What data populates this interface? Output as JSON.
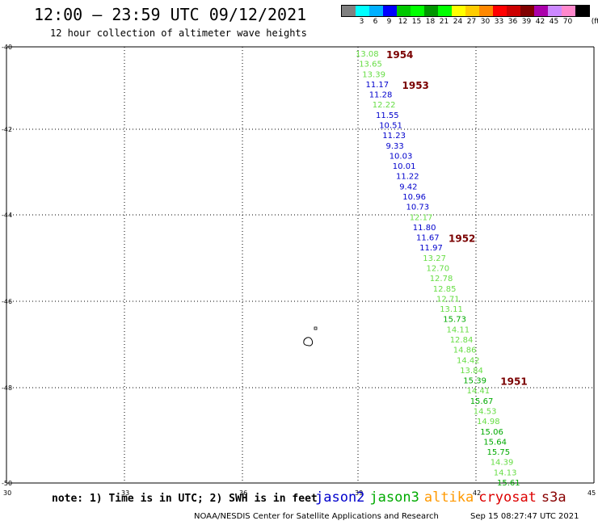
{
  "header": {
    "title": "12:00 – 23:59 UTC 09/12/2021",
    "subtitle": "12 hour collection of altimeter wave heights"
  },
  "legend": {
    "units": "(ft)",
    "items": [
      {
        "label": "",
        "color": "#808080"
      },
      {
        "label": "3",
        "color": "#00ffff"
      },
      {
        "label": "6",
        "color": "#00b0ff"
      },
      {
        "label": "9",
        "color": "#0000ff"
      },
      {
        "label": "12",
        "color": "#00c800"
      },
      {
        "label": "15",
        "color": "#00ff00"
      },
      {
        "label": "18",
        "color": "#009600"
      },
      {
        "label": "21",
        "color": "#00ff00"
      },
      {
        "label": "24",
        "color": "#ffff00"
      },
      {
        "label": "27",
        "color": "#ffcc00"
      },
      {
        "label": "30",
        "color": "#ff8800"
      },
      {
        "label": "33",
        "color": "#ff0000"
      },
      {
        "label": "36",
        "color": "#cc0000"
      },
      {
        "label": "39",
        "color": "#800000"
      },
      {
        "label": "42",
        "color": "#aa00aa"
      },
      {
        "label": "45",
        "color": "#cc88ff"
      },
      {
        "label": "70",
        "color": "#ff88cc"
      },
      {
        "label": "",
        "color": "#000000"
      }
    ]
  },
  "axes": {
    "x_ticks": [
      "30",
      "33",
      "36",
      "39",
      "42",
      "45"
    ],
    "y_ticks": [
      "-40",
      "-42",
      "-44",
      "-46",
      "-48",
      "-50"
    ]
  },
  "track": {
    "colors": {
      "light": "#66dd44",
      "dark": "#00aa00",
      "blue": "#0000cc"
    },
    "points": [
      {
        "v": "13.08",
        "c": "light"
      },
      {
        "v": "13.65",
        "c": "light"
      },
      {
        "v": "13.39",
        "c": "light"
      },
      {
        "v": "11.17",
        "c": "blue"
      },
      {
        "v": "11.28",
        "c": "blue"
      },
      {
        "v": "12.22",
        "c": "light"
      },
      {
        "v": "11.55",
        "c": "blue"
      },
      {
        "v": "10.51",
        "c": "blue"
      },
      {
        "v": "11.23",
        "c": "blue"
      },
      {
        "v": "9.33",
        "c": "blue"
      },
      {
        "v": "10.03",
        "c": "blue"
      },
      {
        "v": "10.01",
        "c": "blue"
      },
      {
        "v": "11.22",
        "c": "blue"
      },
      {
        "v": "9.42",
        "c": "blue"
      },
      {
        "v": "10.96",
        "c": "blue"
      },
      {
        "v": "10.73",
        "c": "blue"
      },
      {
        "v": "12.17",
        "c": "light"
      },
      {
        "v": "11.80",
        "c": "blue"
      },
      {
        "v": "11.67",
        "c": "blue"
      },
      {
        "v": "11.97",
        "c": "blue"
      },
      {
        "v": "13.27",
        "c": "light"
      },
      {
        "v": "12.70",
        "c": "light"
      },
      {
        "v": "12.78",
        "c": "light"
      },
      {
        "v": "12.85",
        "c": "light"
      },
      {
        "v": "12.71",
        "c": "light"
      },
      {
        "v": "13.11",
        "c": "light"
      },
      {
        "v": "15.73",
        "c": "dark"
      },
      {
        "v": "14.11",
        "c": "light"
      },
      {
        "v": "12.84",
        "c": "light"
      },
      {
        "v": "14.86",
        "c": "light"
      },
      {
        "v": "14.42",
        "c": "light"
      },
      {
        "v": "13.84",
        "c": "light"
      },
      {
        "v": "15.39",
        "c": "dark"
      },
      {
        "v": "14.41",
        "c": "light"
      },
      {
        "v": "15.67",
        "c": "dark"
      },
      {
        "v": "14.53",
        "c": "light"
      },
      {
        "v": "14.98",
        "c": "light"
      },
      {
        "v": "15.06",
        "c": "dark"
      },
      {
        "v": "15.64",
        "c": "dark"
      },
      {
        "v": "15.75",
        "c": "dark"
      },
      {
        "v": "14.39",
        "c": "light"
      },
      {
        "v": "14.13",
        "c": "light"
      },
      {
        "v": "15.61",
        "c": "dark"
      }
    ],
    "hours": [
      "1954",
      "1953",
      "1952",
      "1951"
    ]
  },
  "note": "note: 1) Time is in UTC; 2) SWH is in feet",
  "satellites": [
    {
      "name": "jason2",
      "color": "#0000cc"
    },
    {
      "name": "jason3",
      "color": "#00aa00"
    },
    {
      "name": "altika",
      "color": "#ff9900"
    },
    {
      "name": "cryosat",
      "color": "#dd0000"
    },
    {
      "name": "s3a",
      "color": "#880000"
    }
  ],
  "footer": {
    "credit": "NOAA/NESDIS Center for Satellite Applications and Research",
    "timestamp": "Sep 15 08:27:47 UTC 2021"
  }
}
